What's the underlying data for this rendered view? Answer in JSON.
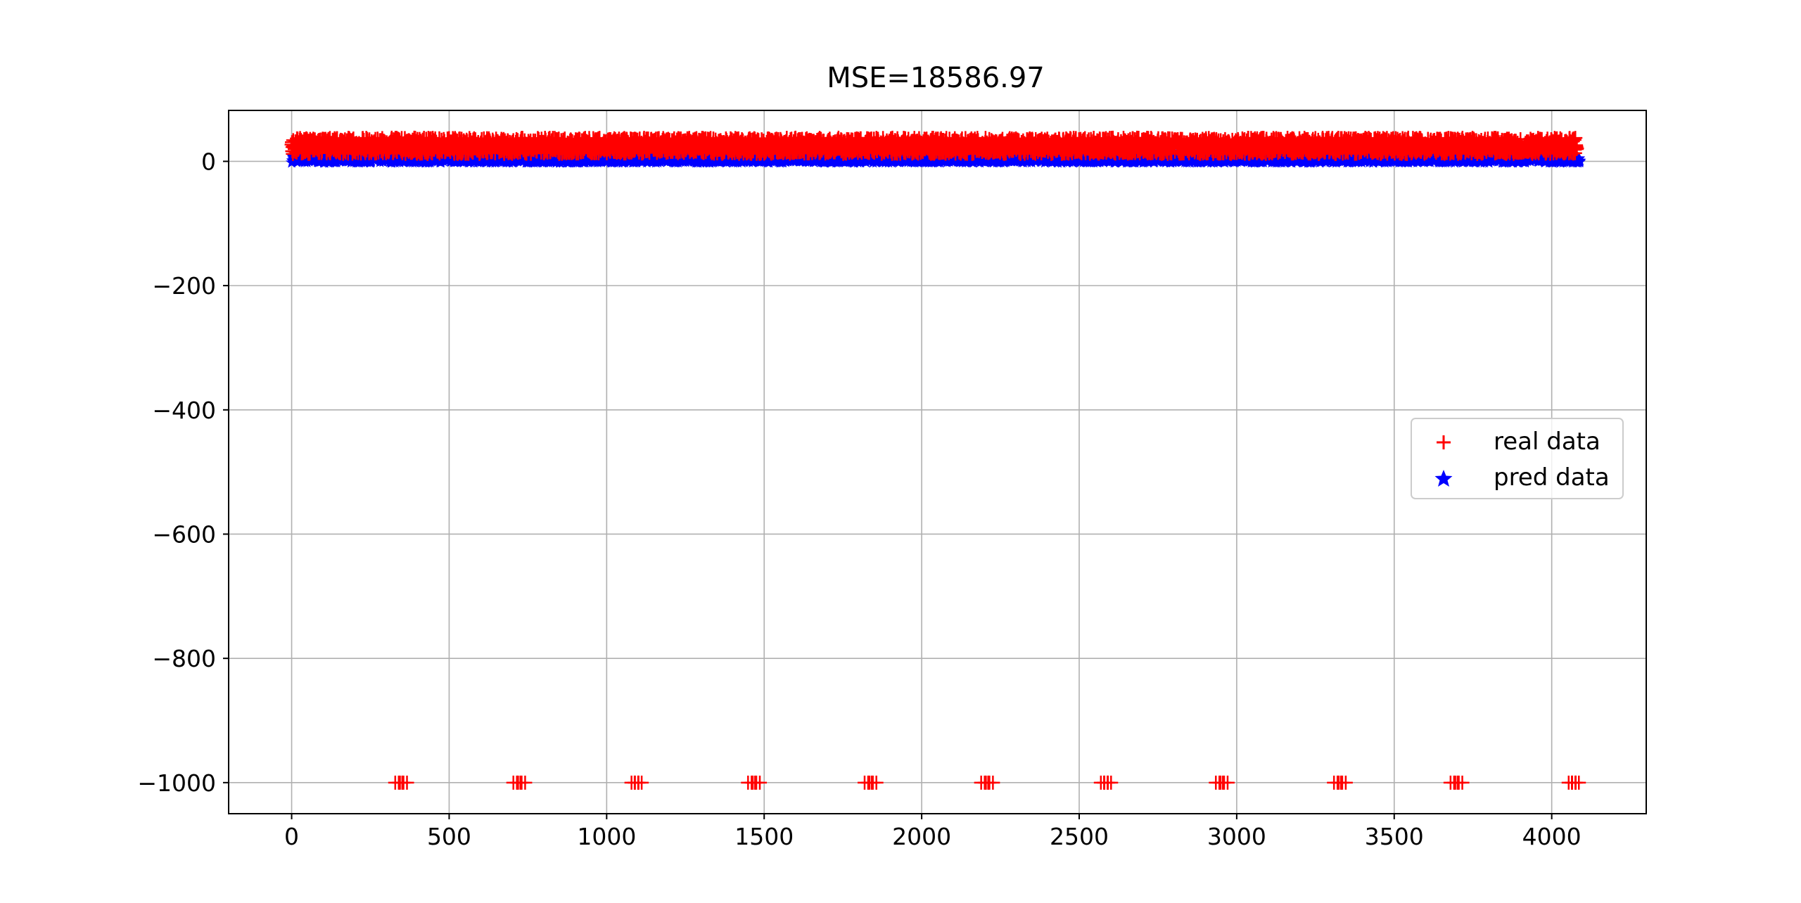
{
  "chart_data": {
    "type": "scatter",
    "title": "MSE=18586.97",
    "xlabel": "",
    "ylabel": "",
    "xlim": [
      -200,
      4300
    ],
    "ylim": [
      -1050,
      82
    ],
    "grid": true,
    "legend_position": "center-right",
    "x_ticks": [
      0,
      500,
      1000,
      1500,
      2000,
      2500,
      3000,
      3500,
      4000
    ],
    "x_tick_labels": [
      "0",
      "500",
      "1000",
      "1500",
      "2000",
      "2500",
      "3000",
      "3500",
      "4000"
    ],
    "y_ticks": [
      0,
      -200,
      -400,
      -600,
      -800,
      -1000
    ],
    "y_tick_labels": [
      "0",
      "−200",
      "−400",
      "−600",
      "−800",
      "−1000"
    ],
    "series": [
      {
        "name": "real data",
        "marker": "plus",
        "color": "#ff0000",
        "dense_band": {
          "x_range": [
            0,
            4080
          ],
          "y_range": [
            12,
            38
          ],
          "approx_points": 4100
        },
        "outliers": [
          {
            "x": 340,
            "y": -1000
          },
          {
            "x": 355,
            "y": -1000
          },
          {
            "x": 715,
            "y": -1000
          },
          {
            "x": 730,
            "y": -1000
          },
          {
            "x": 1090,
            "y": -1000
          },
          {
            "x": 1100,
            "y": -1000
          },
          {
            "x": 1460,
            "y": -1000
          },
          {
            "x": 1475,
            "y": -1000
          },
          {
            "x": 1830,
            "y": -1000
          },
          {
            "x": 1845,
            "y": -1000
          },
          {
            "x": 2200,
            "y": -1000
          },
          {
            "x": 2215,
            "y": -1000
          },
          {
            "x": 2580,
            "y": -1000
          },
          {
            "x": 2590,
            "y": -1000
          },
          {
            "x": 2945,
            "y": -1000
          },
          {
            "x": 2960,
            "y": -1000
          },
          {
            "x": 3320,
            "y": -1000
          },
          {
            "x": 3335,
            "y": -1000
          },
          {
            "x": 3690,
            "y": -1000
          },
          {
            "x": 3705,
            "y": -1000
          },
          {
            "x": 4065,
            "y": -1000
          },
          {
            "x": 4075,
            "y": -1000
          }
        ]
      },
      {
        "name": "pred data",
        "marker": "star",
        "color": "#0000ff",
        "dense_band": {
          "x_range": [
            0,
            4090
          ],
          "y_range": [
            -2,
            10
          ],
          "approx_points": 4100
        }
      }
    ]
  }
}
